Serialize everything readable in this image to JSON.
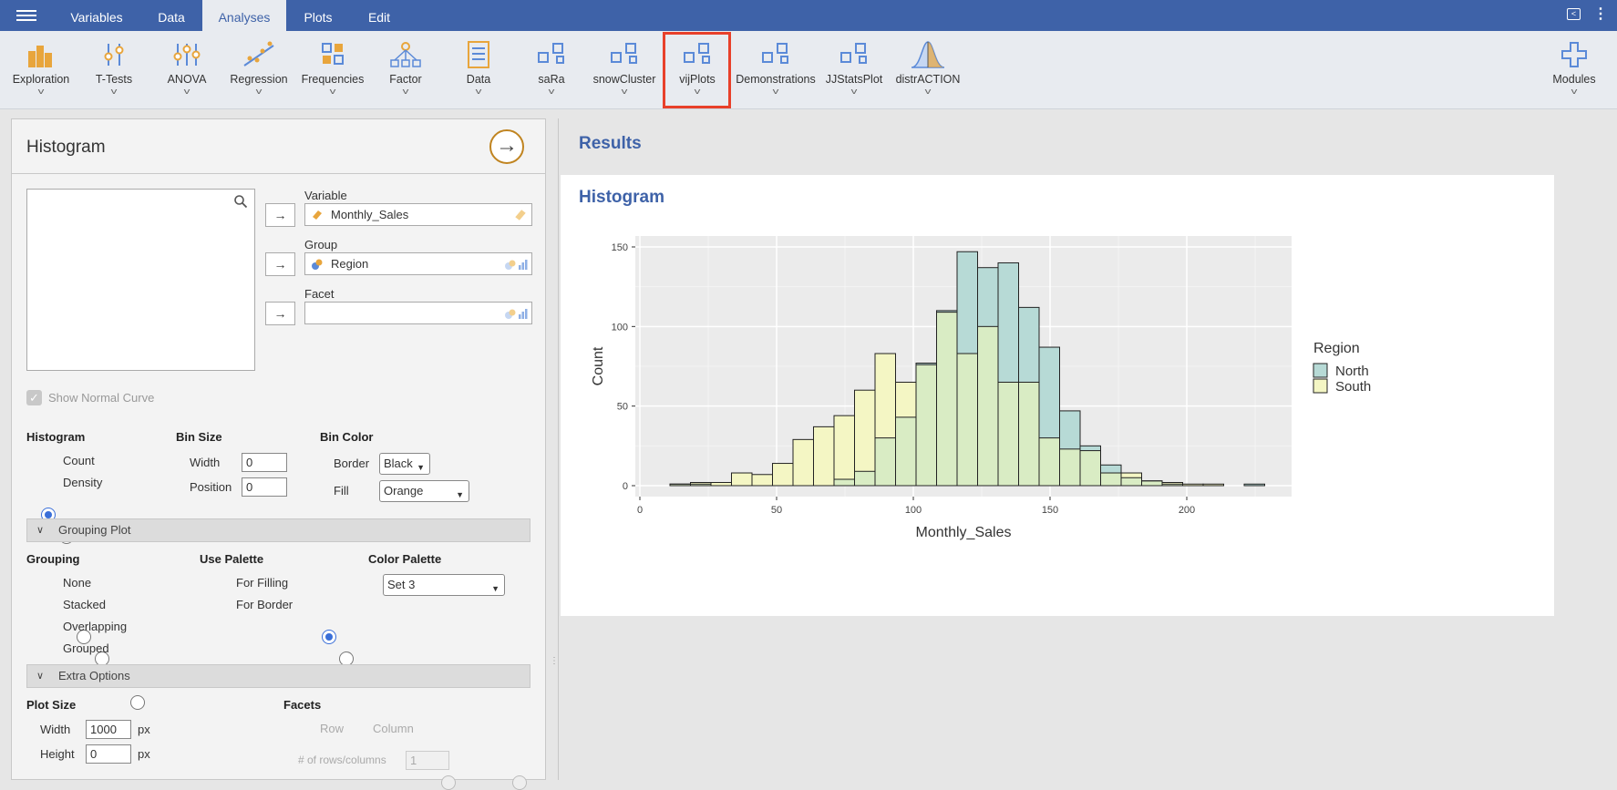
{
  "topbar": {
    "tabs": [
      {
        "label": "Variables"
      },
      {
        "label": "Data"
      },
      {
        "label": "Analyses"
      },
      {
        "label": "Plots"
      },
      {
        "label": "Edit"
      }
    ]
  },
  "ribbon": {
    "items": [
      {
        "label": "Exploration",
        "icon": "exploration-icon"
      },
      {
        "label": "T-Tests",
        "icon": "t-tests-icon"
      },
      {
        "label": "ANOVA",
        "icon": "anova-icon"
      },
      {
        "label": "Regression",
        "icon": "regression-icon"
      },
      {
        "label": "Frequencies",
        "icon": "frequencies-icon"
      },
      {
        "label": "Factor",
        "icon": "factor-icon"
      },
      {
        "label": "Data",
        "icon": "data-icon"
      },
      {
        "label": "saRa",
        "icon": "module-icon"
      },
      {
        "label": "snowCluster",
        "icon": "module-icon"
      },
      {
        "label": "vijPlots",
        "icon": "module-icon"
      },
      {
        "label": "Demonstrations",
        "icon": "module-icon"
      },
      {
        "label": "JJStatsPlot",
        "icon": "module-icon"
      },
      {
        "label": "distrACTION",
        "icon": "distribution-icon"
      }
    ],
    "modules_label": "Modules"
  },
  "panel": {
    "title": "Histogram",
    "variable_label": "Variable",
    "variable_value": "Monthly_Sales",
    "group_label": "Group",
    "group_value": "Region",
    "facet_label": "Facet",
    "facet_value": "",
    "show_normal_curve": "Show Normal Curve",
    "histogram": {
      "title": "Histogram",
      "count": "Count",
      "density": "Density",
      "selected": "Count"
    },
    "bin_size": {
      "title": "Bin Size",
      "width_label": "Width",
      "width_value": "0",
      "position_label": "Position",
      "position_value": "0"
    },
    "bin_color": {
      "title": "Bin Color",
      "border_label": "Border",
      "border_value": "Black",
      "fill_label": "Fill",
      "fill_value": "Orange"
    },
    "grouping_plot_label": "Grouping Plot",
    "grouping": {
      "title": "Grouping",
      "options": [
        "None",
        "Stacked",
        "Overlapping",
        "Grouped"
      ],
      "selected": "Overlapping"
    },
    "use_palette": {
      "title": "Use Palette",
      "options": [
        "For Filling",
        "For Border"
      ],
      "selected": "For Filling"
    },
    "color_palette": {
      "title": "Color Palette",
      "value": "Set 3"
    },
    "extra_options_label": "Extra Options",
    "plot_size": {
      "title": "Plot Size",
      "width_label": "Width",
      "width_value": "1000",
      "height_label": "Height",
      "height_value": "0",
      "unit": "px"
    },
    "facets": {
      "title": "Facets",
      "row": "Row",
      "column": "Column",
      "rows_cols_label": "# of rows/columns",
      "rows_cols_value": "1"
    }
  },
  "results": {
    "title": "Results",
    "histogram_title": "Histogram"
  },
  "colors": {
    "accent": "#3e62a8",
    "north": "#b7dad6",
    "south": "#f4f6c4",
    "overlap": "#d9ecc4",
    "highlight": "#e8402a"
  },
  "chart_data": {
    "type": "bar",
    "title": "",
    "xlabel": "Monthly_Sales",
    "ylabel": "Count",
    "xlim": [
      0,
      240
    ],
    "ylim": [
      0,
      150
    ],
    "xticks": [
      0,
      50,
      100,
      150,
      200
    ],
    "yticks": [
      0,
      50,
      100,
      150
    ],
    "bin_width": 7.5,
    "bin_starts": [
      11,
      18.5,
      26,
      33.5,
      41,
      48.5,
      56,
      63.5,
      71,
      78.5,
      86,
      93.5,
      101,
      108.5,
      116,
      123.5,
      131,
      138.5,
      146,
      153.5,
      161,
      168.5,
      176,
      183.5,
      191,
      198.5,
      206,
      213.5,
      221
    ],
    "legend": {
      "title": "Region",
      "position": "right"
    },
    "series": [
      {
        "name": "North",
        "values": [
          1,
          1,
          0,
          0,
          0,
          0,
          0,
          0,
          4,
          9,
          30,
          43,
          77,
          110,
          147,
          137,
          140,
          112,
          87,
          47,
          25,
          13,
          5,
          3,
          1,
          0,
          0,
          0,
          1
        ]
      },
      {
        "name": "South",
        "values": [
          1,
          2,
          2,
          8,
          7,
          14,
          29,
          37,
          44,
          60,
          83,
          65,
          76,
          109,
          83,
          100,
          65,
          65,
          30,
          23,
          22,
          8,
          8,
          3,
          2,
          1,
          1,
          0,
          0
        ]
      }
    ]
  }
}
